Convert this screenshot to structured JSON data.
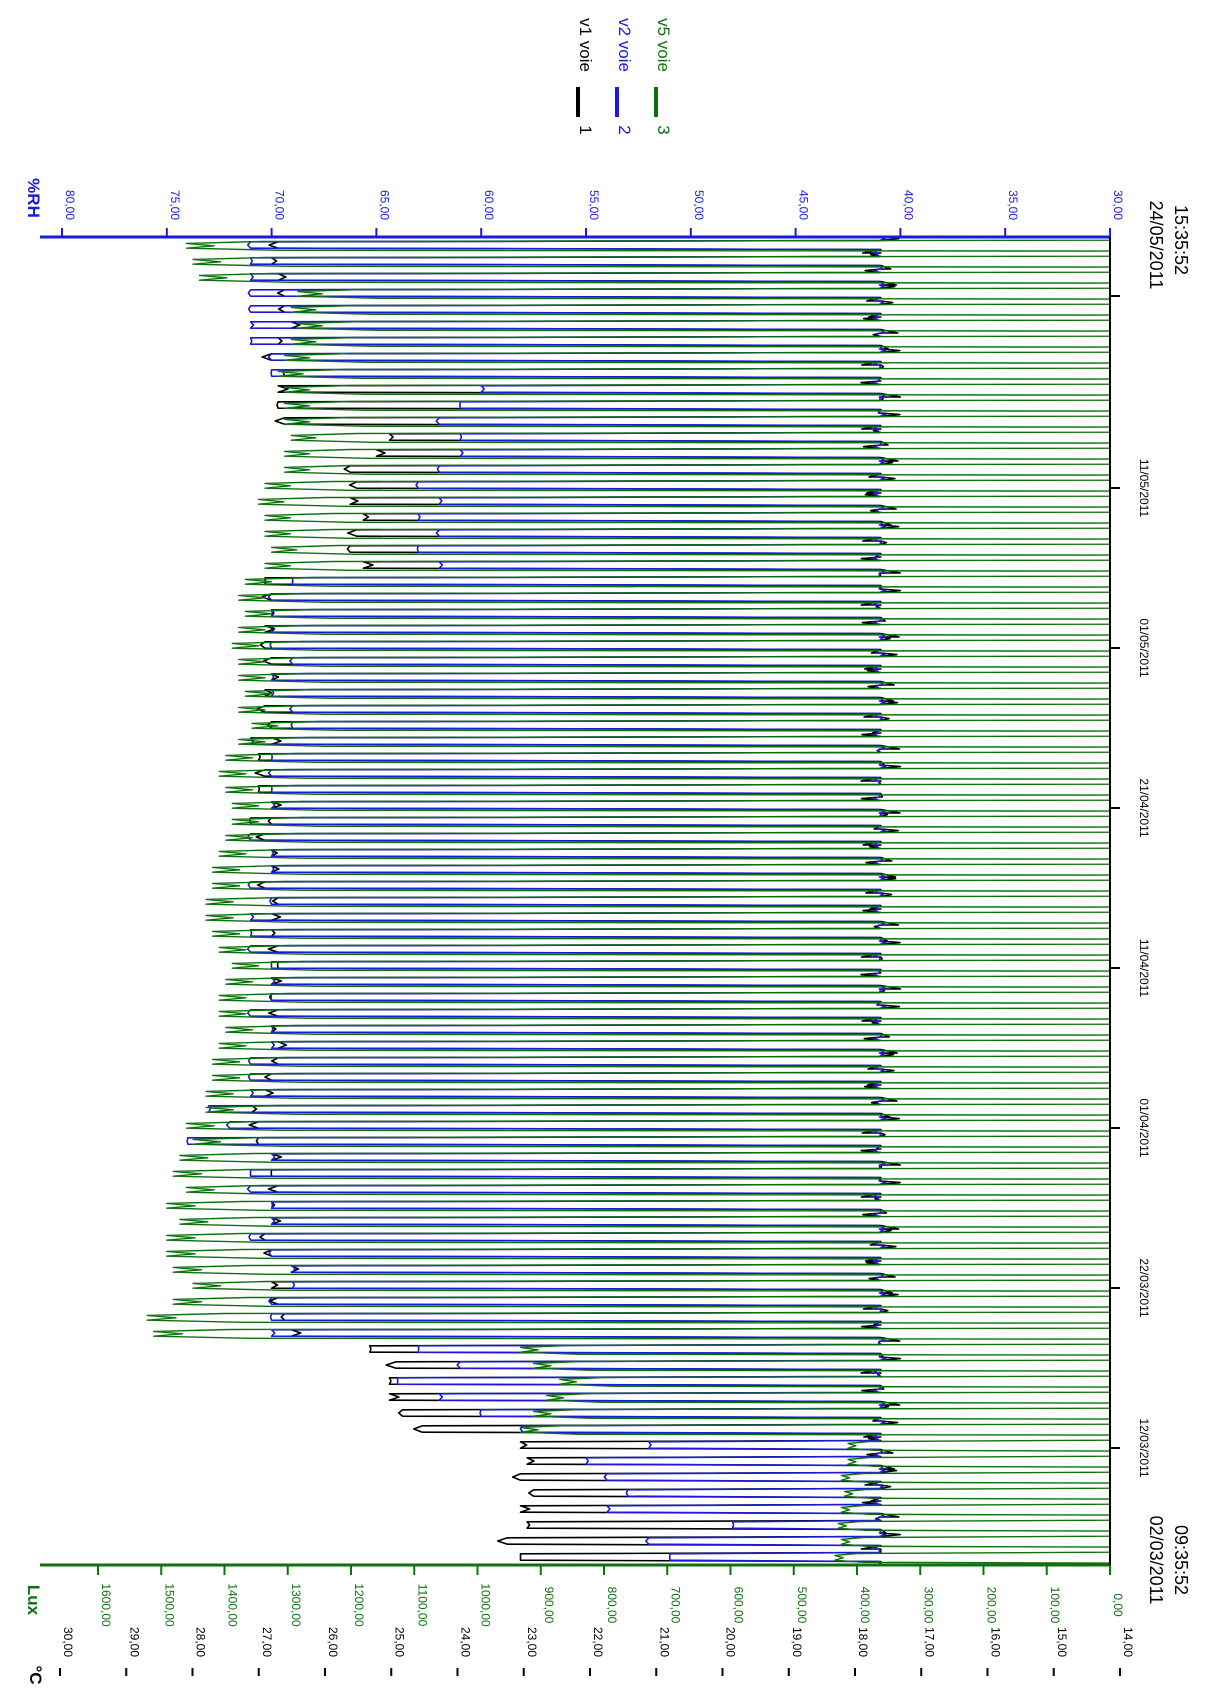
{
  "chart_data": {
    "type": "line",
    "orientation": "rotated-90-clockwise",
    "axes": {
      "temp": {
        "label": "°C",
        "color": "#000000",
        "range": [
          14,
          30
        ],
        "ticks": [
          "30,00",
          "29,00",
          "28,00",
          "27,00",
          "26,00",
          "25,00",
          "24,00",
          "23,00",
          "22,00",
          "21,00",
          "20,00",
          "19,00",
          "18,00",
          "17,00",
          "16,00",
          "15,00",
          "14,00"
        ]
      },
      "lux": {
        "label": "Lux",
        "color": "#107010",
        "range": [
          0,
          1600
        ],
        "ticks": [
          "1600,00",
          "1500,00",
          "1400,00",
          "1300,00",
          "1200,00",
          "1100,00",
          "1000,00",
          "900,00",
          "800,00",
          "700,00",
          "600,00",
          "500,00",
          "400,00",
          "300,00",
          "200,00",
          "100,00",
          "0,00"
        ]
      },
      "rh": {
        "label": "%RH",
        "color": "#1a1adc",
        "range": [
          30,
          80
        ],
        "ticks": [
          "80,00",
          "75,00",
          "70,00",
          "65,00",
          "60,00",
          "55,00",
          "50,00",
          "45,00",
          "40,00",
          "35,00",
          "30,00"
        ]
      }
    },
    "x_start": {
      "date": "02/03/2011",
      "time": "09:35:52"
    },
    "x_end": {
      "date": "24/05/2011",
      "time": "15:35:52"
    },
    "x_ticks": [
      "12/03/2011",
      "22/03/2011",
      "01/04/2011",
      "11/04/2011",
      "21/04/2011",
      "01/05/2011",
      "11/05/2011"
    ],
    "legend": [
      {
        "num": "1",
        "name": "v1 voie",
        "color": "#000000"
      },
      {
        "num": "2",
        "name": "v2 voie",
        "color": "#1a1adc"
      },
      {
        "num": "3",
        "name": "v5 voie",
        "color": "#107010"
      }
    ],
    "series": [
      {
        "name": "v1 voie",
        "axis": "temp",
        "color": "#000000",
        "daily_level": [
          23.0,
          23.2,
          22.9,
          23.0,
          22.8,
          23.0,
          22.9,
          23.0,
          24.5,
          24.8,
          25.0,
          25.0,
          24.9,
          25.3,
          26.5,
          26.6,
          26.7,
          26.8,
          26.5,
          26.8,
          26.9,
          26.8,
          26.8,
          26.7,
          26.8,
          26.8,
          27.0,
          27.0,
          27.1,
          26.9,
          26.8,
          26.7,
          26.7,
          26.8,
          26.7,
          26.8,
          26.8,
          26.7,
          26.7,
          26.8,
          26.8,
          26.7,
          26.9,
          26.8,
          26.8,
          26.9,
          26.8,
          26.8,
          27.0,
          26.9,
          27.0,
          26.8,
          26.8,
          26.9,
          26.9,
          26.8,
          26.8,
          26.9,
          26.9,
          26.8,
          26.8,
          26.9,
          25.4,
          25.6,
          25.5,
          25.4,
          25.6,
          25.5,
          25.6,
          25.2,
          25.0,
          26.6,
          26.7,
          26.7,
          26.6,
          26.8,
          26.7,
          26.5,
          26.6,
          26.6,
          26.7,
          26.8,
          26.7
        ],
        "daily_min": 17.5
      },
      {
        "name": "v2 voie",
        "axis": "rh",
        "color": "#1a1adc",
        "daily_level": [
          51,
          52,
          48,
          54,
          53,
          54,
          55,
          52,
          58,
          60,
          62,
          64,
          61,
          63,
          70,
          70,
          70,
          69,
          69,
          70,
          71,
          70,
          70,
          71,
          71,
          70,
          74,
          72,
          73,
          71,
          71,
          71,
          70,
          70,
          71,
          70,
          70,
          70,
          71,
          71,
          71,
          70,
          71,
          70,
          70,
          71,
          71,
          70,
          70,
          70,
          70,
          71,
          69,
          69,
          70,
          70,
          69,
          70,
          70,
          70,
          70,
          69,
          62,
          63,
          62,
          63,
          62,
          63,
          62,
          61,
          61,
          62,
          61,
          60,
          70,
          70,
          71,
          71,
          71,
          71,
          71,
          71,
          71
        ],
        "daily_min": 41
      },
      {
        "name": "v5 voie",
        "axis": "lux",
        "color": "#107010",
        "daily_peak": [
          420,
          410,
          415,
          410,
          405,
          410,
          400,
          400,
          900,
          880,
          860,
          840,
          880,
          900,
          1460,
          1470,
          1430,
          1400,
          1430,
          1440,
          1440,
          1420,
          1440,
          1410,
          1430,
          1420,
          1400,
          1410,
          1380,
          1380,
          1370,
          1370,
          1360,
          1350,
          1360,
          1360,
          1350,
          1340,
          1360,
          1370,
          1380,
          1380,
          1370,
          1370,
          1360,
          1350,
          1340,
          1340,
          1350,
          1360,
          1350,
          1330,
          1310,
          1330,
          1320,
          1330,
          1330,
          1340,
          1330,
          1320,
          1330,
          1320,
          1290,
          1280,
          1290,
          1290,
          1300,
          1290,
          1260,
          1260,
          1250,
          1260,
          1260,
          1260,
          1270,
          1260,
          1250,
          1240,
          1250,
          1240,
          1390,
          1400,
          1410
        ],
        "night_level": 0
      }
    ]
  }
}
